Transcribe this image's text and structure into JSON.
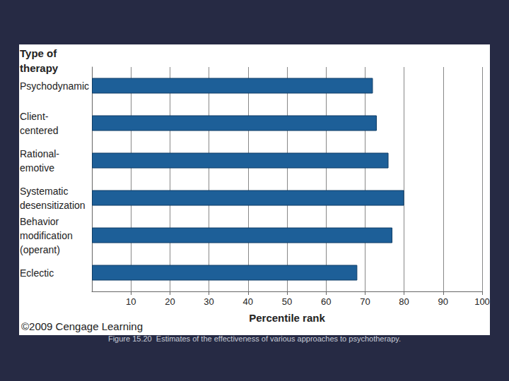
{
  "chart_data": {
    "type": "bar",
    "orientation": "horizontal",
    "y_label": "Type of\ntherapy",
    "x_label": "Percentile rank",
    "categories": [
      "Psychodynamic",
      "Client-\ncentered",
      "Rational-\nemotive",
      "Systematic\ndesensitization",
      "Behavior\nmodification\n(operant)",
      "Eclectic"
    ],
    "values": [
      72,
      73,
      76,
      80,
      77,
      68
    ],
    "color": "#1d5f98",
    "xlim": [
      0,
      100
    ],
    "xticks": [
      10,
      20,
      30,
      40,
      50,
      60,
      70,
      80,
      90,
      100
    ],
    "grid": true,
    "annotations": [
      "©2009 Cengage Learning"
    ],
    "caption": "Figure 15.20  Estimates of the effectiveness of various approaches to psychotherapy."
  }
}
